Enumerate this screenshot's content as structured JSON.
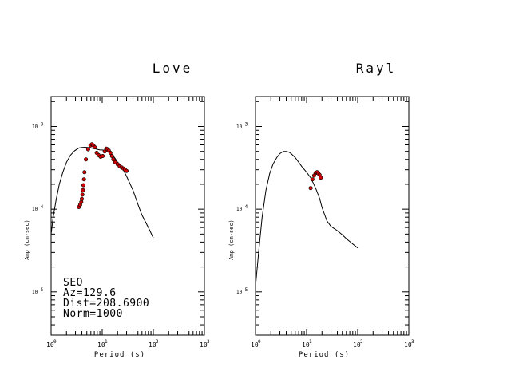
{
  "figure": {
    "station": "SEO",
    "azimuth": "Az=129.6",
    "distance": "Dist=208.6900",
    "norm": "Norm=1000"
  },
  "chart_data": [
    {
      "type": "line+scatter",
      "title": "Love",
      "xlabel": "Period (s)",
      "ylabel": "Amp (cm-sec)",
      "xscale": "log",
      "yscale": "log",
      "xlim": [
        1,
        1000
      ],
      "ylim": [
        3e-06,
        0.0023
      ],
      "x_ticks": [
        {
          "base": "10",
          "exp": "0",
          "value": 1
        },
        {
          "base": "10",
          "exp": "1",
          "value": 10
        },
        {
          "base": "10",
          "exp": "2",
          "value": 100
        },
        {
          "base": "10",
          "exp": "3",
          "value": 1000
        }
      ],
      "y_ticks": [
        {
          "base": "10",
          "exp": "-5",
          "value": 1e-05
        },
        {
          "base": "10",
          "exp": "-4",
          "value": 0.0001
        },
        {
          "base": "10",
          "exp": "-3",
          "value": 0.001
        }
      ],
      "series": [
        {
          "kind": "line",
          "color": "#000000",
          "x": [
            1.0,
            1.1,
            1.25,
            1.45,
            1.7,
            2.0,
            2.4,
            2.9,
            3.5,
            4.2,
            5.0,
            6.0,
            7.0,
            8.0,
            9.0,
            10.0,
            12.0,
            14.0,
            16.0,
            18.0,
            20.0,
            25.0,
            30.0,
            40.0,
            50.0,
            60.0,
            80.0,
            100.0
          ],
          "y": [
            5e-05,
            8e-05,
            0.000128,
            0.0002,
            0.00028,
            0.00037,
            0.00045,
            0.00051,
            0.00055,
            0.00056,
            0.00056,
            0.00055,
            0.00054,
            0.00053,
            0.00052,
            0.00052,
            0.00051,
            0.00049,
            0.00045,
            0.00041,
            0.00037,
            0.00031,
            0.00025,
            0.00017,
            0.000115,
            8.5e-05,
            6e-05,
            4.5e-05
          ]
        },
        {
          "kind": "scatter",
          "color": "#cc0000",
          "x": [
            3.5,
            3.7,
            3.9,
            4.0,
            4.1,
            4.2,
            4.3,
            4.4,
            4.5,
            4.8,
            5.3,
            5.9,
            6.3,
            6.7,
            7.2,
            7.8,
            8.5,
            9.3,
            10.2,
            11.2,
            12.0,
            12.8,
            13.5,
            14.5,
            15.5,
            16.5,
            18.0,
            20.0,
            22.0,
            24.0,
            26.0,
            28.0,
            30.0
          ],
          "y": [
            0.000106,
            0.000113,
            0.000122,
            0.000133,
            0.00015,
            0.00017,
            0.000195,
            0.00023,
            0.00028,
            0.0004,
            0.00053,
            0.00059,
            0.00061,
            0.00059,
            0.00056,
            0.00048,
            0.00045,
            0.00043,
            0.00044,
            0.0005,
            0.00054,
            0.00053,
            0.00051,
            0.00048,
            0.00044,
            0.0004,
            0.00037,
            0.00035,
            0.00033,
            0.00032,
            0.00031,
            0.0003,
            0.00029
          ]
        }
      ]
    },
    {
      "type": "line+scatter",
      "title": "Rayl",
      "xlabel": "Period (s)",
      "ylabel": "Amp (cm-sec)",
      "xscale": "log",
      "yscale": "log",
      "xlim": [
        1,
        1000
      ],
      "ylim": [
        3e-06,
        0.0023
      ],
      "x_ticks": [
        {
          "base": "10",
          "exp": "0",
          "value": 1
        },
        {
          "base": "10",
          "exp": "1",
          "value": 10
        },
        {
          "base": "10",
          "exp": "2",
          "value": 100
        },
        {
          "base": "10",
          "exp": "3",
          "value": 1000
        }
      ],
      "y_ticks": [
        {
          "base": "10",
          "exp": "-5",
          "value": 1e-05
        },
        {
          "base": "10",
          "exp": "-4",
          "value": 0.0001
        },
        {
          "base": "10",
          "exp": "-3",
          "value": 0.001
        }
      ],
      "series": [
        {
          "kind": "line",
          "color": "#000000",
          "x": [
            1.0,
            1.15,
            1.35,
            1.6,
            1.9,
            2.2,
            2.6,
            3.0,
            3.5,
            4.0,
            4.5,
            5.0,
            6.0,
            7.0,
            8.0,
            10.0,
            12.0,
            15.0,
            18.0,
            20.0,
            25.0,
            30.0,
            40.0,
            50.0,
            60.0,
            80.0,
            100.0
          ],
          "y": [
            1.15e-05,
            3e-05,
            8e-05,
            0.00017,
            0.00027,
            0.00035,
            0.00042,
            0.00047,
            0.0005,
            0.0005,
            0.00049,
            0.00047,
            0.00042,
            0.00037,
            0.00033,
            0.00028,
            0.00024,
            0.00018,
            0.000135,
            0.000105,
            7.2e-05,
            6.2e-05,
            5.5e-05,
            4.9e-05,
            4.4e-05,
            3.8e-05,
            3.4e-05
          ]
        },
        {
          "kind": "scatter",
          "color": "#cc0000",
          "x": [
            12.0,
            13.0,
            14.0,
            15.0,
            16.0,
            17.0,
            18.0,
            19.0
          ],
          "y": [
            0.00018,
            0.00023,
            0.000255,
            0.000275,
            0.00028,
            0.00027,
            0.00026,
            0.00024
          ]
        }
      ]
    }
  ]
}
